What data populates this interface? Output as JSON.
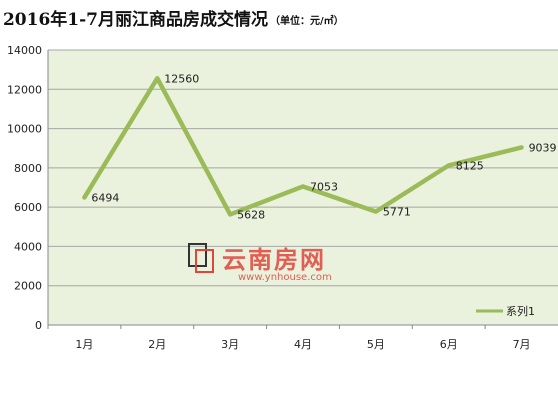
{
  "chart_data": {
    "type": "line",
    "title": "2016年1-7月丽江商品房成交情况",
    "subtitle": "（单位：元/㎡）",
    "categories": [
      "1月",
      "2月",
      "3月",
      "4月",
      "5月",
      "6月",
      "7月"
    ],
    "series": [
      {
        "name": "系列1",
        "values": [
          6494,
          12560,
          5628,
          7053,
          5771,
          8125,
          9039
        ]
      }
    ],
    "data_labels": [
      "6494",
      "12560",
      "5628",
      "7053",
      "5771",
      "8125",
      "9039"
    ],
    "y_ticks": [
      "0",
      "2000",
      "4000",
      "6000",
      "8000",
      "10000",
      "12000",
      "14000"
    ],
    "ylim": [
      0,
      14000
    ],
    "grid": true,
    "legend_position": "bottom-right",
    "colors": {
      "line": "#9bbb59",
      "plot_bg": "#eaf1dd",
      "grid": "#a6a6a6"
    },
    "watermark": {
      "text": "云南房网",
      "url": "www.ynhouse.com"
    }
  }
}
